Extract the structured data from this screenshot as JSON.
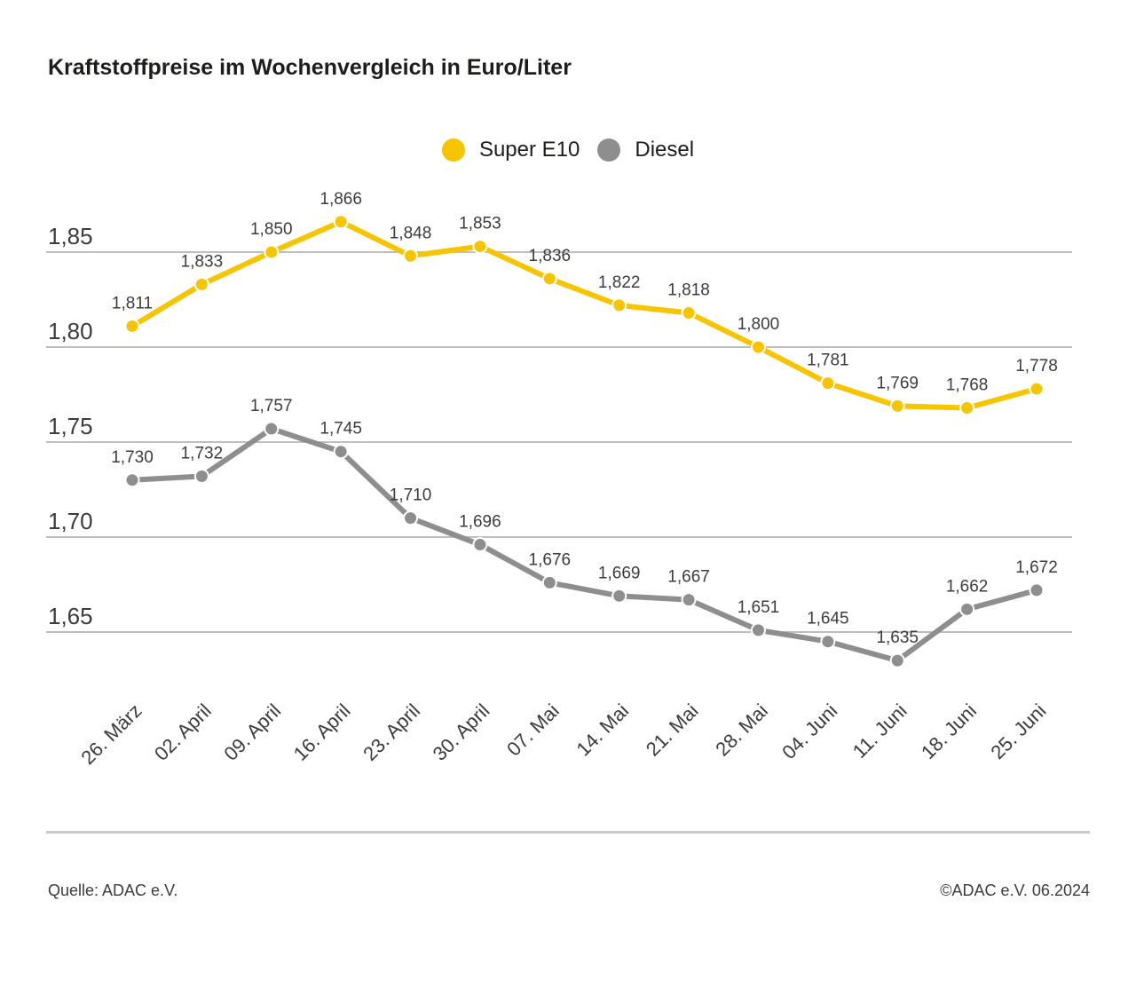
{
  "page": {
    "title": "Kraftstoffpreise im Wochenvergleich in Euro/Liter"
  },
  "legend": {
    "items": [
      {
        "label": "Super E10",
        "color": "#f7c500"
      },
      {
        "label": "Diesel",
        "color": "#8e8e8e"
      }
    ]
  },
  "footer": {
    "source": "Quelle: ADAC e.V.",
    "copyright": "©ADAC e.V. 06.2024"
  },
  "chart_data": {
    "type": "line",
    "title": "Kraftstoffpreise im Wochenvergleich in Euro/Liter",
    "unit": "Euro/Liter",
    "xlabel": "",
    "ylabel": "",
    "ylim": [
      1.65,
      1.85
    ],
    "grid": true,
    "legend_position": "top-center",
    "categories": [
      "26. März",
      "02. April",
      "09. April",
      "16. April",
      "23. April",
      "30. April",
      "07. Mai",
      "14. Mai",
      "21. Mai",
      "28. Mai",
      "04. Juni",
      "11. Juni",
      "18. Juni",
      "25. Juni"
    ],
    "y_axis": {
      "ticks": [
        {
          "value": 1.85,
          "label": "1,85"
        },
        {
          "value": 1.8,
          "label": "1,80"
        },
        {
          "value": 1.75,
          "label": "1,75"
        },
        {
          "value": 1.7,
          "label": "1,70"
        },
        {
          "value": 1.65,
          "label": "1,65"
        }
      ]
    },
    "series": [
      {
        "name": "Super E10",
        "color": "#f7c500",
        "values": [
          1.811,
          1.833,
          1.85,
          1.866,
          1.848,
          1.853,
          1.836,
          1.822,
          1.818,
          1.8,
          1.781,
          1.769,
          1.768,
          1.778
        ],
        "labels": [
          "1,811",
          "1,833",
          "1,850",
          "1,866",
          "1,848",
          "1,853",
          "1,836",
          "1,822",
          "1,818",
          "1,800",
          "1,781",
          "1,769",
          "1,768",
          "1,778"
        ]
      },
      {
        "name": "Diesel",
        "color": "#8e8e8e",
        "values": [
          1.73,
          1.732,
          1.757,
          1.745,
          1.71,
          1.696,
          1.676,
          1.669,
          1.667,
          1.651,
          1.645,
          1.635,
          1.662,
          1.672
        ],
        "labels": [
          "1,730",
          "1,732",
          "1,757",
          "1,745",
          "1,710",
          "1,696",
          "1,676",
          "1,669",
          "1,667",
          "1,651",
          "1,645",
          "1,635",
          "1,662",
          "1,672"
        ]
      }
    ],
    "colors": {
      "grid_line": "#b5b5b5",
      "label_text": "#3c3c3c",
      "marker_outline": "#ffffff"
    }
  }
}
